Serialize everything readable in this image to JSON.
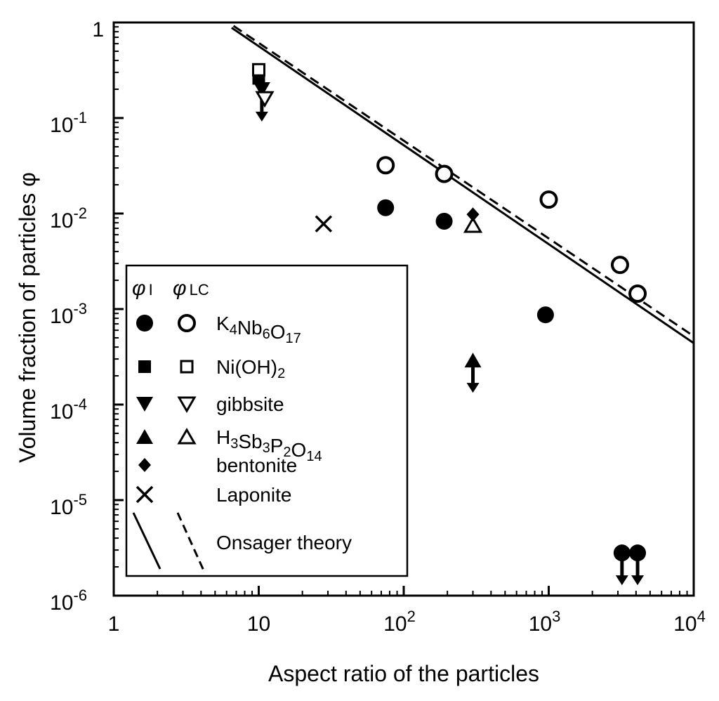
{
  "chart_data": {
    "type": "scatter",
    "xscale": "log",
    "yscale": "log",
    "xlim": [
      1,
      10000
    ],
    "ylim": [
      1e-06,
      1
    ],
    "xlabel": "Aspect ratio of the particles",
    "ylabel": "Volume fraction of particles φ",
    "x_ticks": [
      {
        "value": 1,
        "base": "1",
        "exp": ""
      },
      {
        "value": 10,
        "base": "10",
        "exp": ""
      },
      {
        "value": 100,
        "base": "10",
        "exp": "2"
      },
      {
        "value": 1000,
        "base": "10",
        "exp": "3"
      },
      {
        "value": 10000,
        "base": "10",
        "exp": "4"
      }
    ],
    "y_ticks": [
      {
        "value": 1,
        "base": "1",
        "exp": ""
      },
      {
        "value": 0.1,
        "base": "10",
        "exp": "-1"
      },
      {
        "value": 0.01,
        "base": "10",
        "exp": "-2"
      },
      {
        "value": 0.001,
        "base": "10",
        "exp": "-3"
      },
      {
        "value": 0.0001,
        "base": "10",
        "exp": "-4"
      },
      {
        "value": 1e-05,
        "base": "10",
        "exp": "-5"
      },
      {
        "value": 1e-06,
        "base": "10",
        "exp": "-6"
      }
    ],
    "series": [
      {
        "name": "K4Nb6O17 φI",
        "marker": "circle-filled",
        "points": [
          {
            "x": 75,
            "y": 0.0115
          },
          {
            "x": 190,
            "y": 0.0083
          },
          {
            "x": 950,
            "y": 0.00087
          },
          {
            "x": 3200,
            "y": 2.8e-06,
            "upper_limit": true
          },
          {
            "x": 4100,
            "y": 2.8e-06,
            "upper_limit": true
          }
        ]
      },
      {
        "name": "K4Nb6O17 φLC",
        "marker": "circle-open",
        "points": [
          {
            "x": 75,
            "y": 0.032
          },
          {
            "x": 190,
            "y": 0.026
          },
          {
            "x": 1000,
            "y": 0.014
          },
          {
            "x": 3100,
            "y": 0.0029
          },
          {
            "x": 4100,
            "y": 0.00145
          }
        ]
      },
      {
        "name": "Ni(OH)2 φI",
        "marker": "square-filled",
        "points": [
          {
            "x": 10,
            "y": 0.26
          }
        ]
      },
      {
        "name": "Ni(OH)2 φLC",
        "marker": "square-open",
        "points": [
          {
            "x": 10,
            "y": 0.32
          }
        ]
      },
      {
        "name": "gibbsite φI",
        "marker": "tri-down-filled",
        "points": [
          {
            "x": 10.5,
            "y": 0.2,
            "upper_limit": true
          }
        ]
      },
      {
        "name": "gibbsite φLC",
        "marker": "tri-down-open",
        "points": [
          {
            "x": 11,
            "y": 0.16
          }
        ]
      },
      {
        "name": "H3Sb3P2O14 φI",
        "marker": "tri-up-filled",
        "points": [
          {
            "x": 300,
            "y": 0.00029,
            "upper_limit": true
          }
        ]
      },
      {
        "name": "H3Sb3P2O14 φLC",
        "marker": "tri-up-open",
        "points": [
          {
            "x": 300,
            "y": 0.0075
          }
        ]
      },
      {
        "name": "bentonite",
        "marker": "diamond-filled",
        "points": [
          {
            "x": 300,
            "y": 0.0098
          }
        ]
      },
      {
        "name": "Laponite",
        "marker": "cross",
        "points": [
          {
            "x": 28,
            "y": 0.0078
          }
        ]
      }
    ],
    "lines": [
      {
        "name": "Onsager theory φI",
        "style": "solid",
        "x": [
          6.5,
          10000
        ],
        "y": [
          0.88,
          0.00044
        ]
      },
      {
        "name": "Onsager theory φLC",
        "style": "dashed",
        "x": [
          6.7,
          10000
        ],
        "y": [
          0.92,
          0.00052
        ]
      }
    ],
    "legend": {
      "position": "lower-left",
      "header_phi": "φ",
      "header_i_sub": "I",
      "header_lc_sub": "LC",
      "entries": [
        {
          "label_parts": [
            [
              "K",
              ""
            ],
            [
              "4",
              "sub"
            ],
            [
              "Nb",
              ""
            ],
            [
              "6",
              "sub"
            ],
            [
              "O",
              ""
            ],
            [
              "17",
              "sub"
            ]
          ],
          "left": "circle-filled",
          "right": "circle-open"
        },
        {
          "label_parts": [
            [
              "Ni(OH)",
              ""
            ],
            [
              "2",
              "sub"
            ]
          ],
          "left": "square-filled",
          "right": "square-open"
        },
        {
          "label_parts": [
            [
              "gibbsite",
              ""
            ]
          ],
          "left": "tri-down-filled",
          "right": "tri-down-open"
        },
        {
          "label_parts": [
            [
              "H",
              ""
            ],
            [
              "3",
              "sub"
            ],
            [
              "Sb",
              ""
            ],
            [
              "3",
              "sub"
            ],
            [
              "P",
              ""
            ],
            [
              "2",
              "sub"
            ],
            [
              "O",
              ""
            ],
            [
              "14",
              "sub"
            ]
          ],
          "left": "tri-up-filled",
          "right": "tri-up-open"
        },
        {
          "label_parts": [
            [
              "bentonite",
              ""
            ]
          ],
          "left": "diamond-filled",
          "right": ""
        },
        {
          "label_parts": [
            [
              "Laponite",
              ""
            ]
          ],
          "left": "cross",
          "right": ""
        },
        {
          "label_parts": [
            [
              "Onsager theory",
              ""
            ]
          ],
          "left": "line-solid",
          "right": "line-dashed"
        }
      ]
    }
  }
}
